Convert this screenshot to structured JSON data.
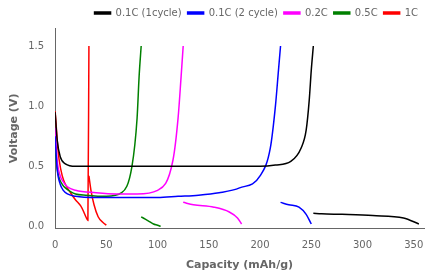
{
  "chart_data": {
    "type": "line",
    "xlabel": "Capacity (mAh/g)",
    "ylabel": "Voltage (V)",
    "xlim": [
      0,
      360
    ],
    "ylim": [
      -0.02,
      1.65
    ],
    "xticks": [
      0,
      50,
      100,
      150,
      200,
      250,
      300,
      350
    ],
    "yticks": [
      {
        "value": 0.0,
        "label": "0.0"
      },
      0.5,
      {
        "value": 1.0,
        "label": "1.0"
      },
      1.5
    ],
    "grid": false,
    "legend": "upper right",
    "series": [
      {
        "name": "0.1C (1cycle)",
        "color": "black",
        "x": [
          0,
          2,
          5,
          10,
          20,
          40,
          60,
          80,
          100,
          120,
          140,
          160,
          180,
          200,
          215,
          230,
          240,
          245,
          248,
          250,
          252,
          null,
          252,
          260,
          280,
          310,
          340,
          355
        ],
        "values": [
          0.95,
          0.72,
          0.58,
          0.52,
          0.5,
          0.5,
          0.5,
          0.5,
          0.5,
          0.5,
          0.5,
          0.5,
          0.5,
          0.5,
          0.51,
          0.54,
          0.65,
          0.8,
          1.05,
          1.3,
          1.5,
          null,
          0.11,
          0.105,
          0.1,
          0.09,
          0.07,
          0.02
        ]
      },
      {
        "name": "0.1C (2 cycle)",
        "color": "blue",
        "x": [
          0,
          2,
          5,
          8,
          12,
          20,
          40,
          60,
          80,
          100,
          120,
          140,
          160,
          180,
          200,
          210,
          215,
          218,
          220,
          null,
          220,
          228,
          238,
          245,
          250
        ],
        "values": [
          0.75,
          0.48,
          0.35,
          0.3,
          0.27,
          0.25,
          0.24,
          0.24,
          0.24,
          0.24,
          0.25,
          0.26,
          0.28,
          0.32,
          0.42,
          0.65,
          1.0,
          1.3,
          1.5,
          null,
          0.2,
          0.18,
          0.16,
          0.1,
          0.02
        ]
      },
      {
        "name": "0.2C",
        "color": "magenta",
        "x": [
          0,
          2,
          5,
          8,
          12,
          20,
          40,
          60,
          80,
          100,
          115,
          120,
          123,
          125,
          null,
          125,
          135,
          155,
          170,
          178,
          182
        ],
        "values": [
          0.82,
          0.55,
          0.42,
          0.37,
          0.33,
          0.3,
          0.28,
          0.27,
          0.27,
          0.3,
          0.55,
          0.9,
          1.25,
          1.5,
          null,
          0.2,
          0.18,
          0.16,
          0.12,
          0.07,
          0.02
        ]
      },
      {
        "name": "0.5C",
        "color": "green",
        "x": [
          0,
          2,
          4,
          7,
          10,
          15,
          20,
          30,
          50,
          65,
          75,
          80,
          82,
          84,
          null,
          84,
          88,
          92,
          96,
          100,
          103
        ],
        "values": [
          0.65,
          0.48,
          0.4,
          0.35,
          0.32,
          0.29,
          0.27,
          0.26,
          0.25,
          0.28,
          0.5,
          0.9,
          1.25,
          1.5,
          null,
          0.08,
          0.06,
          0.04,
          0.02,
          0.01,
          0.0
        ]
      },
      {
        "name": "1C",
        "color": "red",
        "x": [
          0,
          1,
          2,
          4,
          7,
          10,
          15,
          20,
          25,
          28,
          30,
          32,
          33,
          null,
          33,
          35,
          38,
          42,
          47,
          50
        ],
        "values": [
          0.96,
          0.85,
          0.72,
          0.55,
          0.42,
          0.35,
          0.28,
          0.22,
          0.17,
          0.12,
          0.08,
          0.05,
          1.5,
          null,
          0.42,
          0.3,
          0.18,
          0.08,
          0.03,
          0.01
        ]
      }
    ]
  }
}
